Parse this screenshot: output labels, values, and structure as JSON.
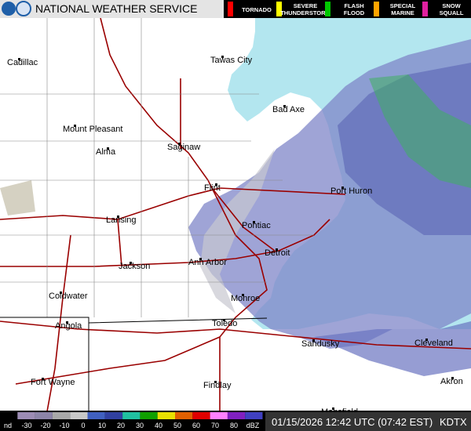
{
  "header": {
    "title": "NATIONAL WEATHER SERVICE",
    "warnings": [
      {
        "label": "TORNADO",
        "color": "#ff0000"
      },
      {
        "label": "SEVERE THUNDERSTORM",
        "color": "#ffff00"
      },
      {
        "label": "FLASH FLOOD",
        "color": "#00c800"
      },
      {
        "label": "SPECIAL MARINE",
        "color": "#ffa500"
      },
      {
        "label": "SNOW SQUALL",
        "color": "#e020a0"
      }
    ]
  },
  "cities": [
    "Cadillac",
    "Tawas City",
    "Bad Axe",
    "Mount Pleasant",
    "Alma",
    "Saginaw",
    "Flint",
    "Port Huron",
    "Lansing",
    "Pontiac",
    "Detroit",
    "Jackson",
    "Ann Arbor",
    "Coldwater",
    "Monroe",
    "Angola",
    "Toledo",
    "Sandusky",
    "Cleveland",
    "Fort Wayne",
    "Findlay",
    "Akron",
    "Mansfield"
  ],
  "scale": {
    "labels": [
      "nd",
      "-30",
      "-20",
      "-10",
      "0",
      "10",
      "20",
      "30",
      "40",
      "50",
      "60",
      "70",
      "80",
      "dBZ"
    ]
  },
  "footer": {
    "timestamp": "01/15/2026 12:42 UTC (07:42 EST)",
    "station": "KDTX"
  }
}
